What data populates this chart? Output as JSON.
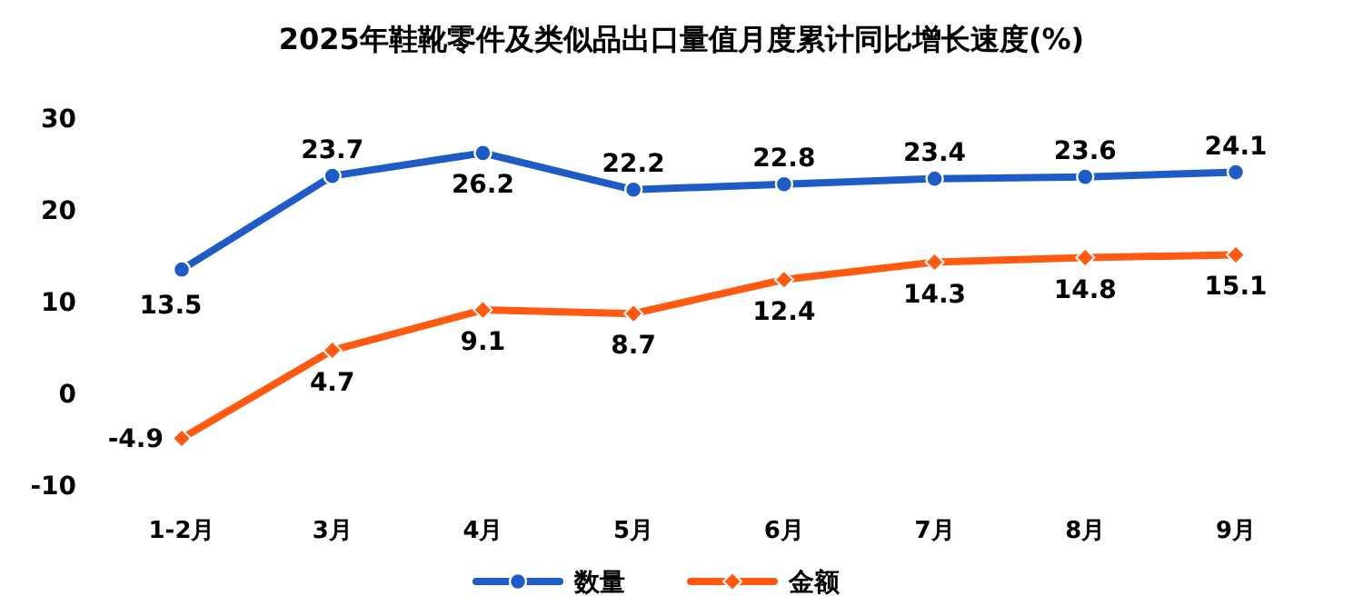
{
  "chart_data": {
    "type": "line",
    "title": "2025年鞋靴零件及类似品出口量值月度累计同比增长速度(%)",
    "categories": [
      "1-2月",
      "3月",
      "4月",
      "5月",
      "6月",
      "7月",
      "8月",
      "9月"
    ],
    "series": [
      {
        "name": "数量",
        "color": "#1f5bc6",
        "marker": "circle",
        "values": [
          13.5,
          23.7,
          26.2,
          22.2,
          22.8,
          23.4,
          23.6,
          24.1
        ]
      },
      {
        "name": "金额",
        "color": "#ff5a10",
        "marker": "diamond",
        "values": [
          -4.9,
          4.7,
          9.1,
          8.7,
          12.4,
          14.3,
          14.8,
          15.1
        ]
      }
    ],
    "ylim": [
      -10,
      30
    ],
    "yticks": [
      -10,
      0,
      10,
      20,
      30
    ],
    "data_labels": true,
    "legend": "bottom",
    "grid": false
  }
}
